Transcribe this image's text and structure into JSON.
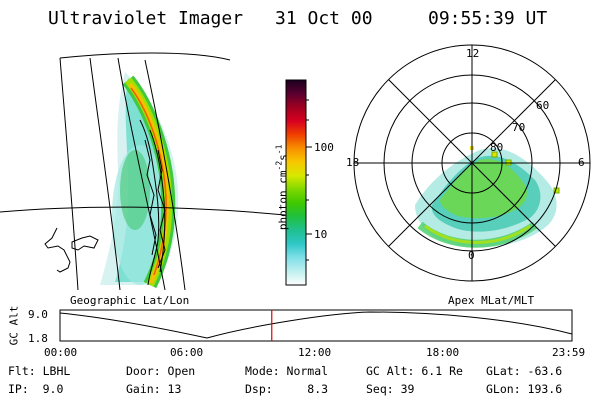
{
  "header": {
    "instrument": "Ultraviolet Imager",
    "date": "31 Oct 00",
    "time": "09:55:39 UT"
  },
  "colorbar": {
    "unit": "photon cm",
    "unit_exp1": "-2",
    "unit_mid": "s",
    "unit_exp2": "-1",
    "ticks": [
      "100",
      "10"
    ],
    "palette": [
      "#1a0020",
      "#5a0030",
      "#a00020",
      "#d80020",
      "#f04000",
      "#f89000",
      "#f8c800",
      "#d8e800",
      "#80d800",
      "#40c800",
      "#20c040",
      "#20c090",
      "#30c8c8",
      "#80e0e8",
      "#c0f0f0",
      "#ffffff"
    ]
  },
  "left_panel": {
    "title": "Geographic Lat/Lon"
  },
  "right_panel": {
    "title": "Apex MLat/MLT",
    "mlt_labels": {
      "top": "12",
      "left": "18",
      "right": "6",
      "bottom": "0"
    },
    "lat_labels": [
      "60",
      "70",
      "80"
    ]
  },
  "altitude_plot": {
    "ylabel": "GC Alt",
    "yticks": [
      "9.0",
      "1.8"
    ],
    "xticks": [
      "00:00",
      "06:00",
      "12:00",
      "18:00",
      "23:59"
    ],
    "current_marker_fraction": 0.4136
  },
  "info": {
    "flt": "Flt: LBHL",
    "ip": "IP:  9.0",
    "door": "Door: Open",
    "gain": "Gain: 13",
    "mode": "Mode: Normal",
    "dsp": "Dsp:     8.3",
    "gcalt": "GC Alt: 6.1 Re",
    "seq": "Seq: 39",
    "glat": "GLat: -63.6",
    "glon": "GLon: 193.6"
  }
}
